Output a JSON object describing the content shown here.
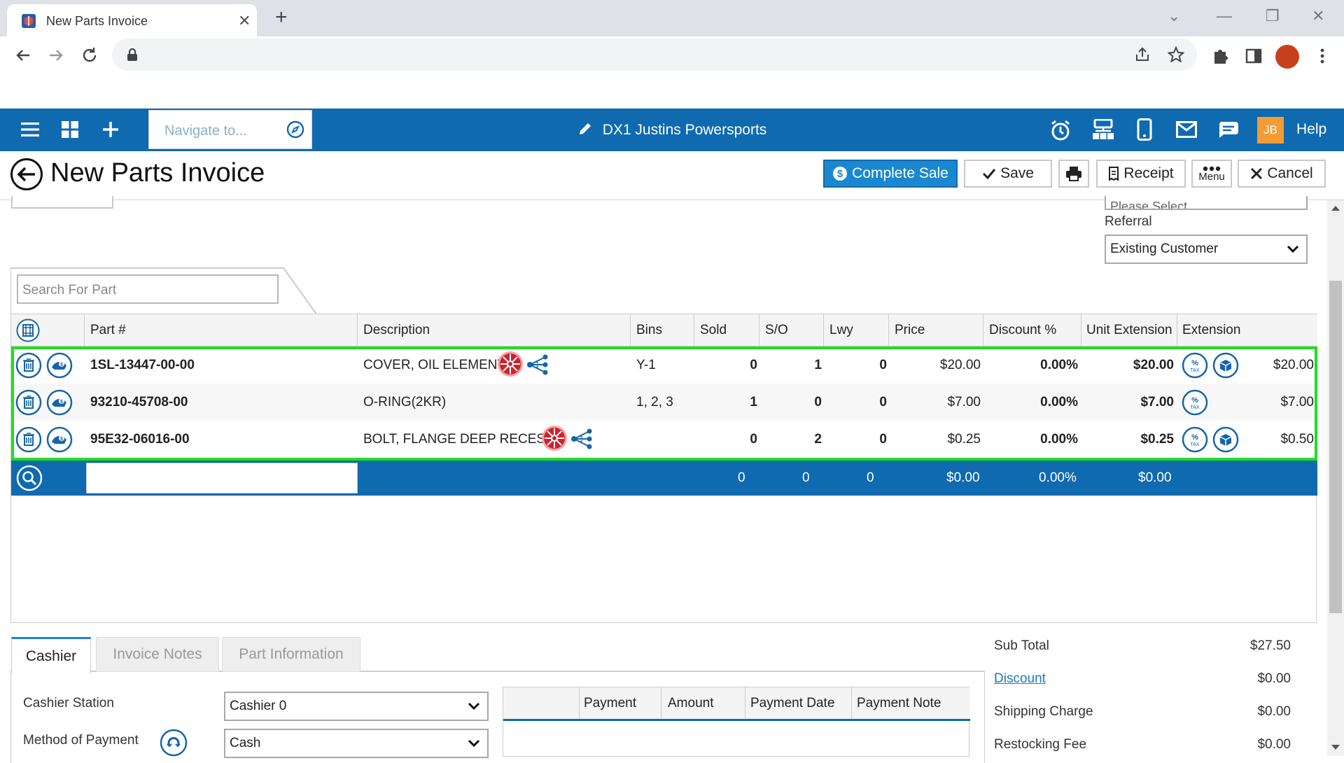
{
  "browser": {
    "tab_title": "New Parts Invoice",
    "tab_close": "✕",
    "new_tab": "+"
  },
  "app": {
    "nav_placeholder": "Navigate to...",
    "dealer_name": "DX1 Justins Powersports",
    "user_initials": "JB",
    "help_label": "Help"
  },
  "page": {
    "title": "New Parts Invoice",
    "buttons": {
      "complete_sale": "Complete Sale",
      "save": "Save",
      "receipt": "Receipt",
      "menu": "Menu",
      "cancel": "Cancel"
    }
  },
  "form": {
    "partial_select_value": "Please Select",
    "referral_label": "Referral",
    "referral_value": "Existing Customer",
    "search_part_placeholder": "Search For Part"
  },
  "grid": {
    "columns": [
      "Part #",
      "Description",
      "Bins",
      "Sold",
      "S/O",
      "Lwy",
      "Price",
      "Discount %",
      "Unit Extension",
      "Extension"
    ],
    "rows": [
      {
        "part": "1SL-13447-00-00",
        "description": "COVER, OIL ELEMENT",
        "bins": "Y-1",
        "sold": "0",
        "so": "1",
        "lwy": "0",
        "price": "$20.00",
        "discount": "0.00%",
        "unit_ext": "$20.00",
        "extension": "$20.00",
        "has_brand_icon": true,
        "has_box_icon": true
      },
      {
        "part": "93210-45708-00",
        "description": "O-RING(2KR)",
        "bins": "1, 2, 3",
        "sold": "1",
        "so": "0",
        "lwy": "0",
        "price": "$7.00",
        "discount": "0.00%",
        "unit_ext": "$7.00",
        "extension": "$7.00",
        "has_brand_icon": false,
        "has_box_icon": false
      },
      {
        "part": "95E32-06016-00",
        "description": "BOLT, FLANGE DEEP RECESS",
        "bins": "",
        "sold": "0",
        "so": "2",
        "lwy": "0",
        "price": "$0.25",
        "discount": "0.00%",
        "unit_ext": "$0.25",
        "extension": "$0.50",
        "has_brand_icon": true,
        "has_box_icon": true
      }
    ],
    "totals": {
      "sold": "0",
      "so": "0",
      "lwy": "0",
      "price": "$0.00",
      "discount": "0.00%",
      "unit_ext": "$0.00"
    },
    "tax_badge": "% TAX"
  },
  "bottom": {
    "tabs": [
      "Cashier",
      "Invoice Notes",
      "Part Information"
    ],
    "cashier_station_label": "Cashier Station",
    "cashier_station_value": "Cashier 0",
    "method_label": "Method of Payment",
    "method_value": "Cash",
    "payment_columns": [
      "Payment",
      "Amount",
      "Payment Date",
      "Payment Note"
    ]
  },
  "summary": {
    "subtotal_label": "Sub Total",
    "subtotal": "$27.50",
    "discount_label": "Discount",
    "discount": "$0.00",
    "shipping_label": "Shipping Charge",
    "shipping": "$0.00",
    "restocking_label": "Restocking Fee",
    "restocking": "$0.00"
  },
  "colors": {
    "brand_blue": "#0f6ab0",
    "highlight_green": "#22dd22",
    "user_badge": "#f39c34"
  }
}
